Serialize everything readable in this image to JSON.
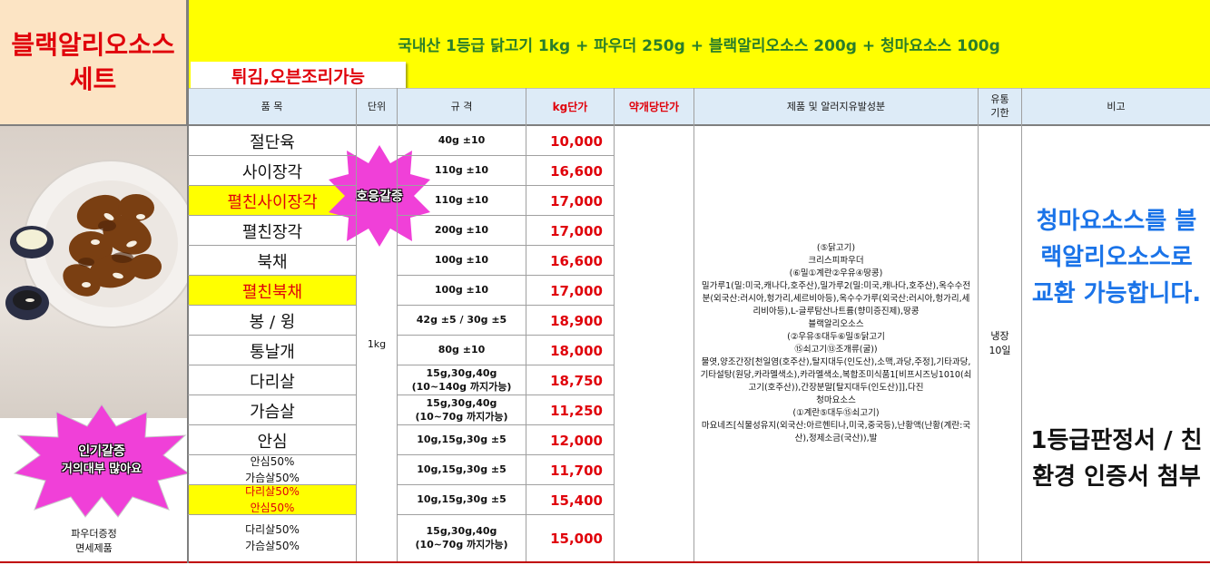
{
  "title": {
    "line1": "블랙알리오소스",
    "line2": "세트"
  },
  "banner": "국내산 1등급 닭고기 1kg + 파우더 250g + 블랙알리오소스 200g + 청마요소스 100g",
  "cooking_badge": "튀김,오븐조리가능",
  "headers": {
    "item": "품 목",
    "unit": "단위",
    "spec": "규 격",
    "kg_price": "kg단가",
    "contract_price": "약개당단가",
    "ingredients": "제품 및 알러지유발성분",
    "shelf": "유통 기한",
    "note": "비고"
  },
  "rows": [
    {
      "name": "절단육",
      "spec": "40g ±10",
      "price": "10,000"
    },
    {
      "name": "사이장각",
      "spec": "110g ±10",
      "price": "16,600"
    },
    {
      "name": "펼친사이장각",
      "spec": "110g ±10",
      "price": "17,000"
    },
    {
      "name": "펼친장각",
      "spec": "200g ±10",
      "price": "17,000"
    },
    {
      "name": "북채",
      "spec": "100g ±10",
      "price": "16,600"
    },
    {
      "name": "펼친북채",
      "spec": "100g ±10",
      "price": "17,000"
    },
    {
      "name": "봉 / 윙",
      "spec": "42g ±5 / 30g ±5",
      "price": "18,900"
    },
    {
      "name": "통날개",
      "spec": "80g ±10",
      "price": "18,000"
    },
    {
      "name": "다리살",
      "spec": "15g,30g,40g\n(10~140g 까지가능)",
      "price": "18,750"
    },
    {
      "name": "가슴살",
      "spec": "15g,30g,40g\n(10~70g 까지가능)",
      "price": "11,250"
    },
    {
      "name": "안심",
      "spec": "10g,15g,30g ±5",
      "price": "12,000"
    },
    {
      "name": "안심50%\n가슴살50%",
      "spec": "10g,15g,30g ±5",
      "price": "11,700"
    },
    {
      "name": "다리살50%\n안심50%",
      "spec": "10g,15g,30g ±5",
      "price": "15,400"
    },
    {
      "name": "다리살50%\n가슴살50%",
      "spec": "15g,30g,40g\n(10~70g 까지가능)",
      "price": "15,000"
    }
  ],
  "unit_value": "1kg",
  "burst_top": "호응갈증",
  "burst_bottom": {
    "line1": "인기갈증",
    "line2": "거의대부 많아요"
  },
  "photo_caption": {
    "line1": "파우더증정",
    "line2": "면세제품"
  },
  "ingredients_text": [
    "(⑤닭고기)",
    "크리스피파우더",
    "(⑥밀①계란②우유④땅콩)",
    "밀가루1(밀:미국,캐나다,호주산),밀가루2(밀:미국,캐나다,호주산),옥수수전분(외국산:러시아,헝가리,세르비아등),옥수수가루(외국산:러시아,헝가리,세리비아등),L-글루탐산나트륨(향미증진제),땅콩",
    "블랙알리오소스",
    "(②우유⑤대두⑥밀⑤닭고기",
    "⑮쇠고기⑬조개류(굴))",
    "물엿,양조간장[천일염(호주산),탈지대두(인도산),소맥,과당,주정],기타과당,기타설탕(원당,카라멜색소),카라멜색소,복합조미식품1[비프시즈닝1010(쇠고기(호주산)),간장분말[탈지대두(인도산)]],다진",
    "청마요소스",
    "(①계란⑤대두⑮쇠고기)",
    "마요네즈[식물성유지(외국산:아르헨티나,미국,중국등),난황액(난황(계란:국산),정제소금(국산)),발"
  ],
  "shelf_life": {
    "line1": "냉장",
    "line2": "10일"
  },
  "note_blue": "청마요소스를 블랙알리오소스로 교환 가능합니다.",
  "note_black": "1등급판정서 / 친환경 인증서 첨부",
  "colors": {
    "banner_bg": "#ffff00",
    "title_bg": "#fce4c4",
    "header_bg": "#ddebf7",
    "price_red": "#e0000a",
    "note_blue": "#1a73e8",
    "burst_pink": "#f040d8"
  }
}
